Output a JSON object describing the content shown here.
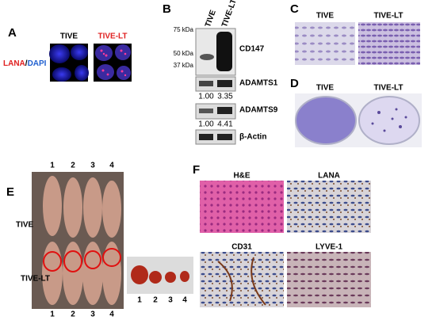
{
  "panel_a": {
    "label": "A",
    "columns": [
      "TIVE",
      "TIVE-LT"
    ],
    "stain": {
      "lana": "LANA",
      "slash": "/",
      "dapi": "DAPI"
    }
  },
  "panel_b": {
    "label": "B",
    "markers": [
      "75 kDa",
      "50 kDa",
      "37 kDa"
    ],
    "columns": [
      "TIVE",
      "TIVE-LT"
    ],
    "blots": [
      {
        "name": "CD147"
      },
      {
        "name": "ADAMTS1",
        "quant": [
          "1.00",
          "3.35"
        ]
      },
      {
        "name": "ADAMTS9",
        "quant": [
          "1.00",
          "4.41"
        ]
      },
      {
        "name": "β-Actin"
      }
    ]
  },
  "panel_c": {
    "label": "C",
    "columns": [
      "TIVE",
      "TIVE-LT"
    ]
  },
  "panel_d": {
    "label": "D",
    "columns": [
      "TIVE",
      "TIVE-LT"
    ]
  },
  "panel_e": {
    "label": "E",
    "mice_top": [
      "1",
      "2",
      "3",
      "4"
    ],
    "rows": [
      "TIVE",
      "TIVE-LT"
    ],
    "mice_bottom": [
      "1",
      "2",
      "3",
      "4"
    ],
    "tumors": [
      "1",
      "2",
      "3",
      "4"
    ]
  },
  "panel_f": {
    "label": "F",
    "stains": [
      "H&E",
      "LANA",
      "CD31",
      "LYVE-1"
    ]
  }
}
